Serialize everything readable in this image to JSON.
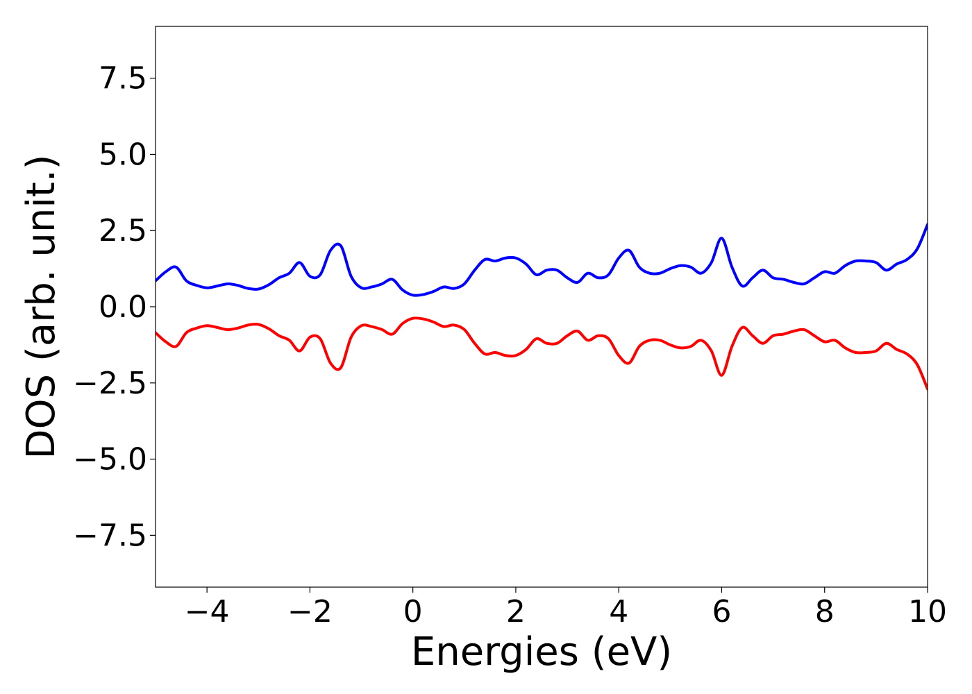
{
  "chart_data": {
    "type": "line",
    "xlabel": "Energies (eV)",
    "ylabel": "DOS (arb. unit.)",
    "xlim": [
      -5,
      10
    ],
    "ylim": [
      -9.2,
      9.2
    ],
    "x_ticks": [
      -4,
      -2,
      0,
      2,
      4,
      6,
      8,
      10
    ],
    "x_tick_labels": [
      "−4",
      "−2",
      "0",
      "2",
      "4",
      "6",
      "8",
      "10"
    ],
    "y_ticks": [
      7.5,
      5.0,
      2.5,
      0.0,
      -2.5,
      -5.0,
      -7.5
    ],
    "y_tick_labels": [
      "7.5",
      "5.0",
      "2.5",
      "0.0",
      "−2.5",
      "−5.0",
      "−7.5"
    ],
    "grid": false,
    "series": [
      {
        "color": "#0000ff",
        "x": [
          -5.0,
          -4.8,
          -4.6,
          -4.4,
          -4.2,
          -4.0,
          -3.8,
          -3.6,
          -3.4,
          -3.2,
          -3.0,
          -2.8,
          -2.6,
          -2.4,
          -2.2,
          -2.0,
          -1.8,
          -1.6,
          -1.4,
          -1.2,
          -1.0,
          -0.8,
          -0.6,
          -0.4,
          -0.2,
          0.0,
          0.2,
          0.4,
          0.6,
          0.8,
          1.0,
          1.2,
          1.4,
          1.6,
          1.8,
          2.0,
          2.2,
          2.4,
          2.6,
          2.8,
          3.0,
          3.2,
          3.4,
          3.6,
          3.8,
          4.0,
          4.2,
          4.4,
          4.6,
          4.8,
          5.0,
          5.2,
          5.4,
          5.6,
          5.8,
          6.0,
          6.2,
          6.4,
          6.6,
          6.8,
          7.0,
          7.2,
          7.4,
          7.6,
          7.8,
          8.0,
          8.2,
          8.4,
          8.6,
          8.8,
          9.0,
          9.2,
          9.4,
          9.6,
          9.8,
          10.0
        ],
        "y": [
          0.85,
          1.15,
          1.3,
          0.85,
          0.7,
          0.62,
          0.68,
          0.75,
          0.7,
          0.6,
          0.58,
          0.72,
          0.95,
          1.1,
          1.45,
          1.0,
          1.05,
          1.85,
          2.0,
          1.0,
          0.62,
          0.65,
          0.75,
          0.9,
          0.55,
          0.38,
          0.4,
          0.5,
          0.65,
          0.6,
          0.75,
          1.2,
          1.55,
          1.5,
          1.6,
          1.6,
          1.4,
          1.05,
          1.2,
          1.2,
          0.95,
          0.8,
          1.1,
          0.95,
          1.05,
          1.6,
          1.85,
          1.3,
          1.1,
          1.1,
          1.25,
          1.35,
          1.3,
          1.1,
          1.45,
          2.25,
          1.3,
          0.68,
          0.95,
          1.2,
          0.95,
          0.9,
          0.8,
          0.75,
          0.95,
          1.15,
          1.1,
          1.35,
          1.5,
          1.5,
          1.45,
          1.2,
          1.4,
          1.55,
          1.9,
          2.7
        ]
      },
      {
        "color": "#ff0000",
        "x": [
          -5.0,
          -4.8,
          -4.6,
          -4.4,
          -4.2,
          -4.0,
          -3.8,
          -3.6,
          -3.4,
          -3.2,
          -3.0,
          -2.8,
          -2.6,
          -2.4,
          -2.2,
          -2.0,
          -1.8,
          -1.6,
          -1.4,
          -1.2,
          -1.0,
          -0.8,
          -0.6,
          -0.4,
          -0.2,
          0.0,
          0.2,
          0.4,
          0.6,
          0.8,
          1.0,
          1.2,
          1.4,
          1.6,
          1.8,
          2.0,
          2.2,
          2.4,
          2.6,
          2.8,
          3.0,
          3.2,
          3.4,
          3.6,
          3.8,
          4.0,
          4.2,
          4.4,
          4.6,
          4.8,
          5.0,
          5.2,
          5.4,
          5.6,
          5.8,
          6.0,
          6.2,
          6.4,
          6.6,
          6.8,
          7.0,
          7.2,
          7.4,
          7.6,
          7.8,
          8.0,
          8.2,
          8.4,
          8.6,
          8.8,
          9.0,
          9.2,
          9.4,
          9.6,
          9.8,
          10.0
        ],
        "y": [
          -0.85,
          -1.15,
          -1.3,
          -0.85,
          -0.7,
          -0.62,
          -0.68,
          -0.75,
          -0.7,
          -0.6,
          -0.58,
          -0.72,
          -0.95,
          -1.1,
          -1.45,
          -1.0,
          -1.05,
          -1.85,
          -2.0,
          -1.0,
          -0.62,
          -0.65,
          -0.75,
          -0.9,
          -0.55,
          -0.38,
          -0.4,
          -0.5,
          -0.65,
          -0.6,
          -0.75,
          -1.2,
          -1.55,
          -1.5,
          -1.6,
          -1.6,
          -1.4,
          -1.05,
          -1.2,
          -1.2,
          -0.95,
          -0.8,
          -1.1,
          -0.95,
          -1.05,
          -1.6,
          -1.85,
          -1.3,
          -1.1,
          -1.1,
          -1.25,
          -1.35,
          -1.3,
          -1.1,
          -1.45,
          -2.25,
          -1.3,
          -0.68,
          -0.95,
          -1.2,
          -0.95,
          -0.9,
          -0.8,
          -0.75,
          -0.95,
          -1.15,
          -1.1,
          -1.35,
          -1.5,
          -1.5,
          -1.45,
          -1.2,
          -1.4,
          -1.55,
          -1.9,
          -2.7
        ]
      }
    ]
  }
}
